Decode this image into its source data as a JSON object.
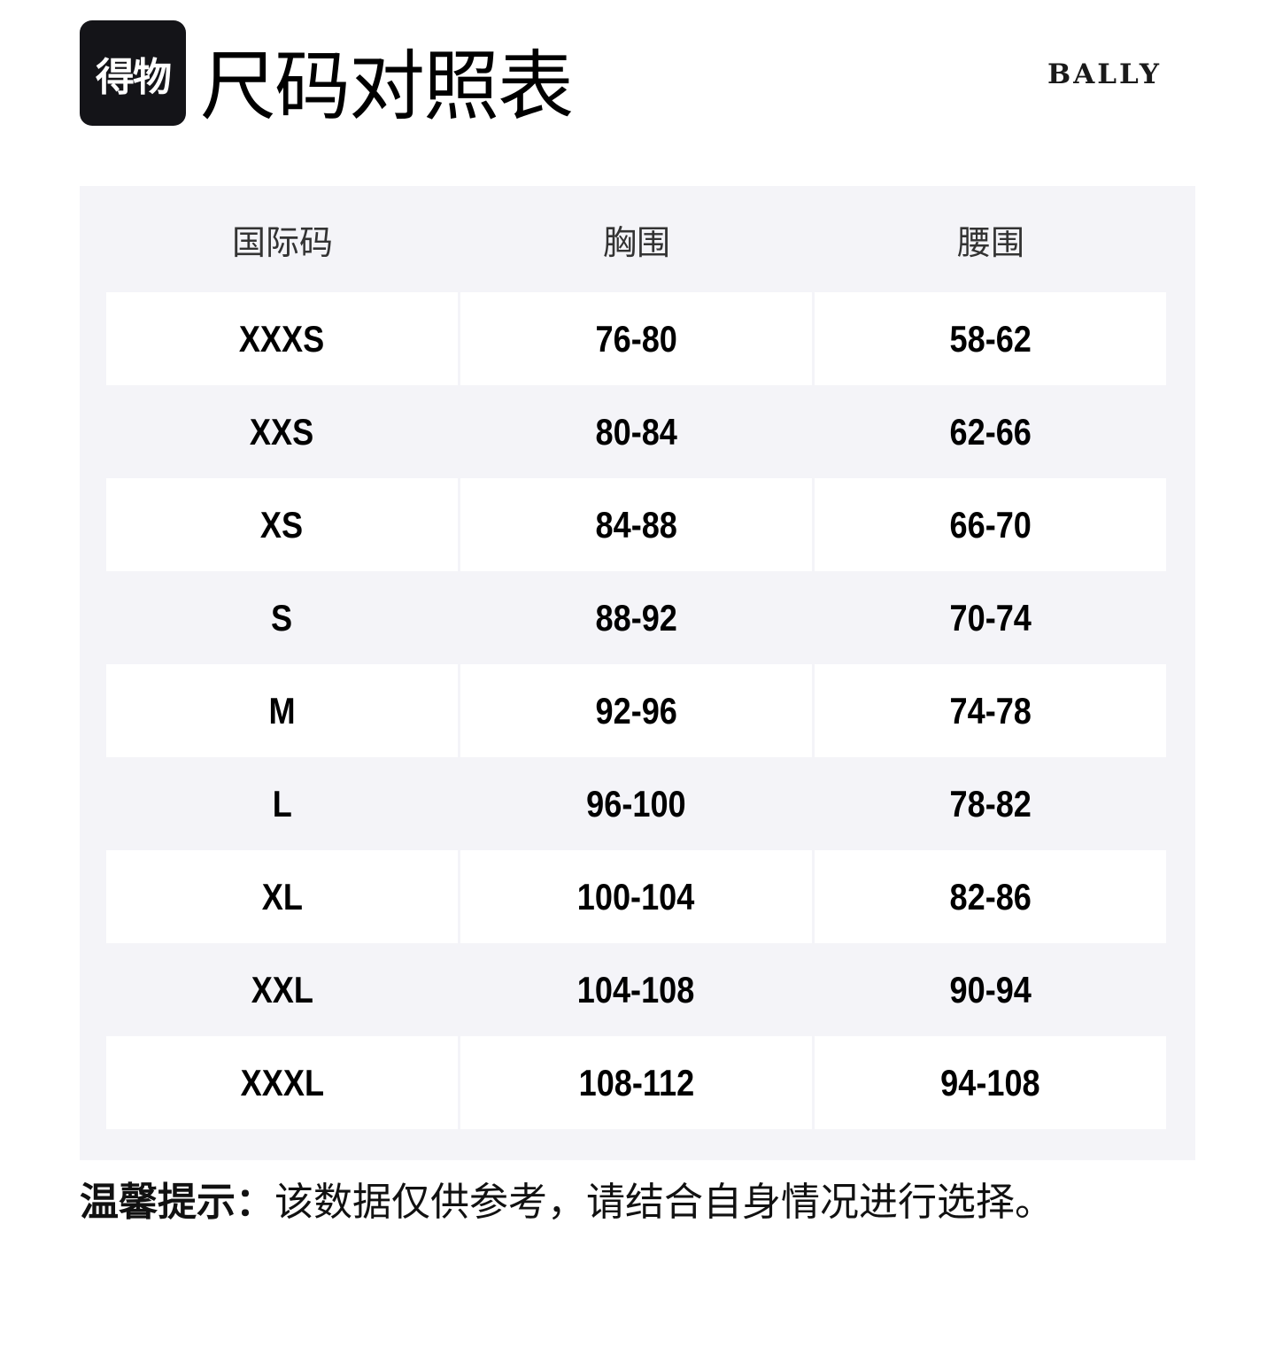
{
  "header": {
    "logo_text": "得物",
    "title": "尺码对照表",
    "brand": "BALLY"
  },
  "table": {
    "columns": [
      "国际码",
      "胸围",
      "腰围"
    ],
    "rows": [
      [
        "XXXS",
        "76-80",
        "58-62"
      ],
      [
        "XXS",
        "80-84",
        "62-66"
      ],
      [
        "XS",
        "84-88",
        "66-70"
      ],
      [
        "S",
        "88-92",
        "70-74"
      ],
      [
        "M",
        "92-96",
        "74-78"
      ],
      [
        "L",
        "96-100",
        "78-82"
      ],
      [
        "XL",
        "100-104",
        "82-86"
      ],
      [
        "XXL",
        "104-108",
        "90-94"
      ],
      [
        "XXXL",
        "108-112",
        "94-108"
      ]
    ]
  },
  "note": {
    "label": "温馨提示：",
    "text": "该数据仅供参考，请结合自身情况进行选择。"
  },
  "colors": {
    "panel_bg": "#f4f4f8",
    "row_bg": "#ffffff",
    "logo_bg": "#141418"
  }
}
